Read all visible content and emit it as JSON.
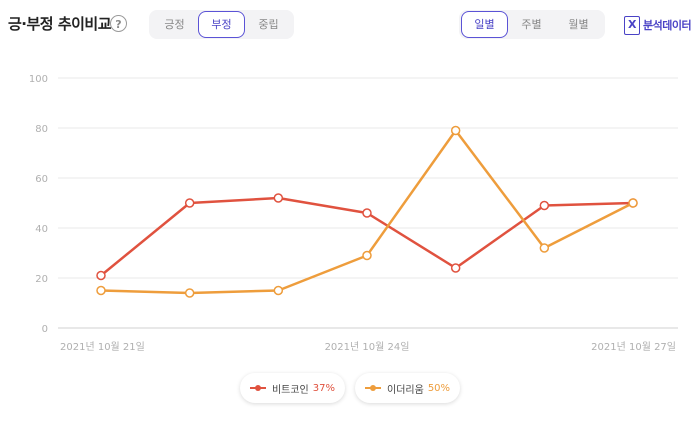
{
  "header": {
    "title": "긍·부정 추이비교",
    "help_icon": "question-circle-icon"
  },
  "sentiment_tabs": [
    {
      "label": "긍정",
      "active": false
    },
    {
      "label": "부정",
      "active": true
    },
    {
      "label": "중립",
      "active": false
    }
  ],
  "period_tabs": [
    {
      "label": "일별",
      "active": true
    },
    {
      "label": "주별",
      "active": false
    },
    {
      "label": "월별",
      "active": false
    }
  ],
  "export": {
    "label": "분석데이터",
    "icon": "excel-file-icon"
  },
  "chart_data": {
    "type": "line",
    "title": "",
    "xlabel": "",
    "ylabel": "",
    "x": [
      "2021년 10월 21일",
      "",
      "",
      "2021년 10월 24일",
      "",
      "",
      "2021년 10월 27일"
    ],
    "x_tick_labels": [
      "2021년 10월 21일",
      "2021년 10월 24일",
      "2021년 10월 27일"
    ],
    "ylim": [
      0,
      100
    ],
    "y_ticks": [
      0,
      20,
      40,
      60,
      80,
      100
    ],
    "grid": true,
    "legend_position": "bottom",
    "series": [
      {
        "name": "비트코인",
        "percent": "37%",
        "color": "#e0523f",
        "values": [
          21,
          50,
          52,
          46,
          24,
          49,
          50
        ]
      },
      {
        "name": "이더리움",
        "percent": "50%",
        "color": "#ee9d3c",
        "values": [
          15,
          14,
          15,
          29,
          79,
          32,
          50
        ]
      }
    ]
  }
}
